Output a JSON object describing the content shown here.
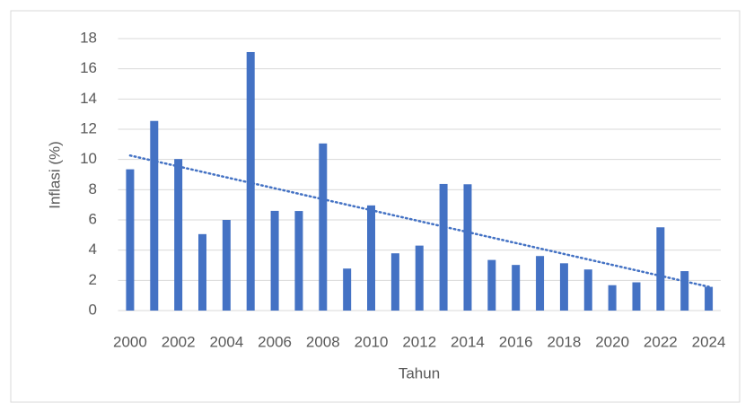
{
  "chart_data": {
    "type": "bar",
    "xlabel": "Tahun",
    "ylabel": "Inflasi (%)",
    "categories": [
      "2000",
      null,
      "2002",
      null,
      "2004",
      null,
      "2006",
      null,
      "2008",
      null,
      "2010",
      null,
      "2012",
      null,
      "2014",
      null,
      "2016",
      null,
      "2018",
      null,
      "2020",
      null,
      "2022",
      null,
      "2024"
    ],
    "values": [
      9.35,
      12.55,
      10.03,
      5.06,
      6.0,
      17.11,
      6.6,
      6.59,
      11.06,
      2.78,
      6.96,
      3.79,
      4.3,
      8.38,
      8.36,
      3.35,
      3.02,
      3.61,
      3.13,
      2.72,
      1.68,
      1.87,
      5.51,
      2.61,
      1.57
    ],
    "color": "#4472c4",
    "trendline": "linear",
    "ylim": [
      0,
      18
    ],
    "yticks": [
      0,
      2,
      4,
      6,
      8,
      10,
      12,
      14,
      16,
      18
    ],
    "grid": true
  }
}
